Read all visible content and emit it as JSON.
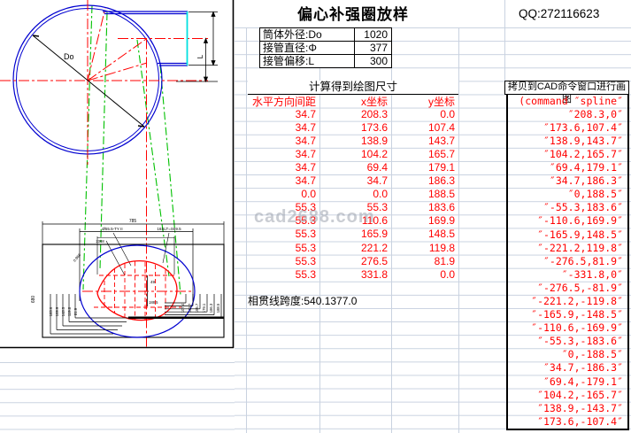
{
  "title": "偏心补强圈放样",
  "qq": "QQ:272116623",
  "watermark": "cad2688.com",
  "colors": {
    "data_text": "#ff0000",
    "gridline": "#c9d2e0",
    "drawing_blue": "#0000d0",
    "drawing_red": "#ff0000",
    "drawing_green": "#00c000",
    "drawing_cyan": "#00e0e0"
  },
  "params": [
    {
      "label": "筒体外径:Do",
      "value": "1020"
    },
    {
      "label": "接管直径:Φ",
      "value": "377"
    },
    {
      "label": "接管偏移:L",
      "value": "300"
    }
  ],
  "calc_header": "计算得到绘图尺寸",
  "table": {
    "columns": [
      "水平方向间距",
      "x坐标",
      "y坐标"
    ],
    "rows": [
      [
        "34.7",
        "208.3",
        "0.0"
      ],
      [
        "34.7",
        "173.6",
        "107.4"
      ],
      [
        "34.7",
        "138.9",
        "143.7"
      ],
      [
        "34.7",
        "104.2",
        "165.7"
      ],
      [
        "34.7",
        "69.4",
        "179.1"
      ],
      [
        "34.7",
        "34.7",
        "186.3"
      ],
      [
        "0.0",
        "0.0",
        "188.5"
      ],
      [
        "55.3",
        "55.3",
        "183.6"
      ],
      [
        "55.3",
        "110.6",
        "169.9"
      ],
      [
        "55.3",
        "165.9",
        "148.5"
      ],
      [
        "55.3",
        "221.2",
        "119.8"
      ],
      [
        "55.3",
        "276.5",
        "81.9"
      ],
      [
        "55.3",
        "331.8",
        "0.0"
      ]
    ],
    "span_label": "相贯线跨度:",
    "span_x": "540.1",
    "span_y": "377.0"
  },
  "cad": {
    "header": "拷贝到CAD命令窗口进行画图",
    "lines": [
      "(command ″spline″",
      "″208.3,0″",
      "″173.6,107.4″",
      "″138.9,143.7″",
      "″104.2,165.7″",
      "″69.4,179.1″",
      "″34.7,186.3″",
      "″0,188.5″",
      "″-55.3,183.6″",
      "″-110.6,169.9″",
      "″-165.9,148.5″",
      "″-221.2,119.8″",
      "″-276.5,81.9″",
      "″-331.8,0″",
      "″-276.5,-81.9″",
      "″-221.2,-119.8″",
      "″-165.9,-148.5″",
      "″-110.6,-169.9″",
      "″-55.3,-183.6″",
      "″0,-188.5″",
      "″34.7,-186.3″",
      "″69.4,-179.1″",
      "″104.2,-165.7″",
      "″138.9,-143.7″",
      "″173.6,-107.4″"
    ]
  },
  "drawing": {
    "do_label": "Do",
    "l_label": "L",
    "top_dim": "785",
    "dim_a": "Ø55.5-TY II",
    "dim_b": "16SLT=S69.5",
    "leader_a": "2368",
    "leader_b": "0.968",
    "center_a": "49",
    "center_b": "188.5",
    "outer_left": "680",
    "left_dims": [
      "183.6",
      "169.9",
      "148.5",
      "119.8",
      "81.9"
    ],
    "right_dims": [
      "188.5",
      "186.3",
      "179.1",
      "165.7",
      "143.7",
      "107.4"
    ]
  }
}
